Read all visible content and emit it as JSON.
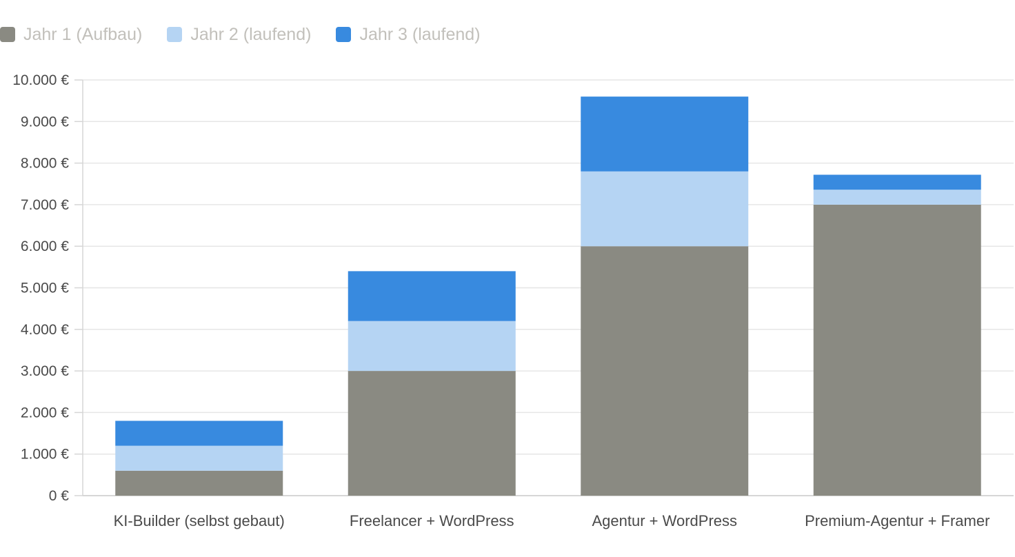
{
  "chart_data": {
    "type": "bar",
    "stacked": true,
    "categories": [
      "KI-Builder (selbst gebaut)",
      "Freelancer + WordPress",
      "Agentur + WordPress",
      "Premium-Agentur + Framer"
    ],
    "series": [
      {
        "name": "Jahr 1 (Aufbau)",
        "color": "#8a8a82",
        "values": [
          600,
          3000,
          6000,
          7000
        ]
      },
      {
        "name": "Jahr 2 (laufend)",
        "color": "#b5d4f3",
        "values": [
          600,
          1200,
          1800,
          360
        ]
      },
      {
        "name": "Jahr 3 (laufend)",
        "color": "#388adf",
        "values": [
          600,
          1200,
          1800,
          360
        ]
      }
    ],
    "ylim": [
      0,
      10000
    ],
    "yticks": [
      {
        "value": 0,
        "label": "0 €"
      },
      {
        "value": 1000,
        "label": "1.000 €"
      },
      {
        "value": 2000,
        "label": "2.000 €"
      },
      {
        "value": 3000,
        "label": "3.000 €"
      },
      {
        "value": 4000,
        "label": "4.000 €"
      },
      {
        "value": 5000,
        "label": "5.000 €"
      },
      {
        "value": 6000,
        "label": "6.000 €"
      },
      {
        "value": 7000,
        "label": "7.000 €"
      },
      {
        "value": 8000,
        "label": "8.000 €"
      },
      {
        "value": 9000,
        "label": "9.000 €"
      },
      {
        "value": 10000,
        "label": "10.000 €"
      }
    ],
    "grid": true,
    "legend_position": "top-left",
    "title": "",
    "xlabel": "",
    "ylabel": ""
  }
}
